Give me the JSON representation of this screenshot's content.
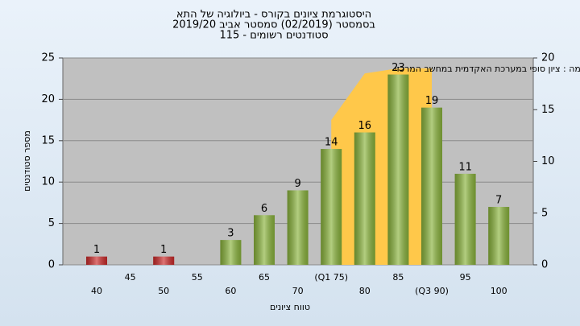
{
  "chart_data": {
    "type": "bar",
    "title": [
      "היסטוגרמת ציונים בקורס - ביולוגיה של התא",
      "בסמסטר (02/2019) סמסטר אביב 2019/20",
      "סטודנטים רשומים - 115"
    ],
    "annotation": "ברשימה : ציון סופי במערכת האקדמית במחשב המרכזי",
    "x_label": "טווח ציונים",
    "y_label": "מספר סטודנטים",
    "categories": [
      "40",
      "45",
      "50",
      "55",
      "60",
      "65",
      "70",
      "(Q1 75)",
      "80",
      "85",
      "(Q3 90)",
      "95",
      "100"
    ],
    "values": [
      1,
      0,
      1,
      0,
      3,
      6,
      9,
      14,
      16,
      23,
      19,
      11,
      7
    ],
    "colors": [
      "#cc2a2a",
      "#cc2a2a",
      "#cc2a2a",
      "#cc2a2a",
      "#8ab43c",
      "#8ab43c",
      "#8ab43c",
      "#8ab43c",
      "#8ab43c",
      "#8ab43c",
      "#8ab43c",
      "#8ab43c",
      "#8ab43c"
    ],
    "series": [
      {
        "color": "#ffc84a",
        "axis": "y2",
        "values": [
          null,
          null,
          null,
          null,
          null,
          null,
          null,
          14,
          18.5,
          19,
          19,
          null,
          null
        ]
      }
    ],
    "ylim": [
      0,
      25
    ],
    "yticks": [
      0,
      5,
      10,
      15,
      20,
      25
    ],
    "y2lim": [
      0,
      20
    ],
    "y2ticks": [
      0,
      5,
      10,
      15,
      20
    ],
    "grid": true
  }
}
